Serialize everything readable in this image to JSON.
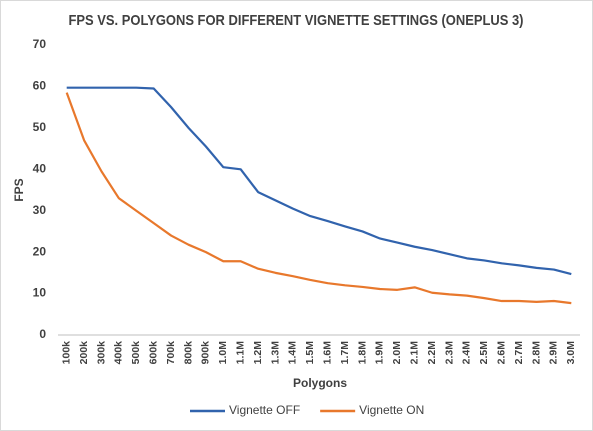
{
  "chart_data": {
    "type": "line",
    "title": "FPS VS. POLYGONS FOR DIFFERENT VIGNETTE SETTINGS (ONEPLUS 3)",
    "x_label": "Polygons",
    "y_label": "FPS",
    "categories": [
      "100k",
      "200k",
      "300k",
      "400k",
      "500k",
      "600k",
      "700k",
      "800k",
      "900k",
      "1.0M",
      "1.1M",
      "1.2M",
      "1.3M",
      "1.4M",
      "1.5M",
      "1.6M",
      "1.7M",
      "1.8M",
      "1.9M",
      "2.0M",
      "2.1M",
      "2.2M",
      "2.3M",
      "2.4M",
      "2.5M",
      "2.6M",
      "2.7M",
      "2.8M",
      "2.9M",
      "3.0M"
    ],
    "series": [
      {
        "name": "Vignette OFF",
        "color": "#3163ad",
        "values": [
          59.7,
          59.7,
          59.7,
          59.7,
          59.7,
          59.5,
          55,
          50,
          45.5,
          40.5,
          40,
          34.5,
          32.5,
          30.5,
          28.7,
          27.5,
          26.2,
          25,
          23.3,
          22.3,
          21.3,
          20.5,
          19.5,
          18.5,
          18,
          17.3,
          16.8,
          16.2,
          15.8,
          14.7
        ]
      },
      {
        "name": "Vignette ON",
        "color": "#e8782c",
        "values": [
          58.5,
          47,
          39.5,
          33,
          30,
          27,
          24,
          21.8,
          20,
          17.8,
          17.8,
          16,
          15,
          14.2,
          13.3,
          12.5,
          12,
          11.6,
          11.1,
          10.9,
          11.5,
          10.2,
          9.8,
          9.5,
          8.9,
          8.2,
          8.2,
          8,
          8.2,
          7.7
        ]
      }
    ],
    "ylim": [
      0,
      70
    ],
    "yticks": [
      0,
      10,
      20,
      30,
      40,
      50,
      60,
      70
    ],
    "grid": false,
    "legend": "bottom"
  }
}
